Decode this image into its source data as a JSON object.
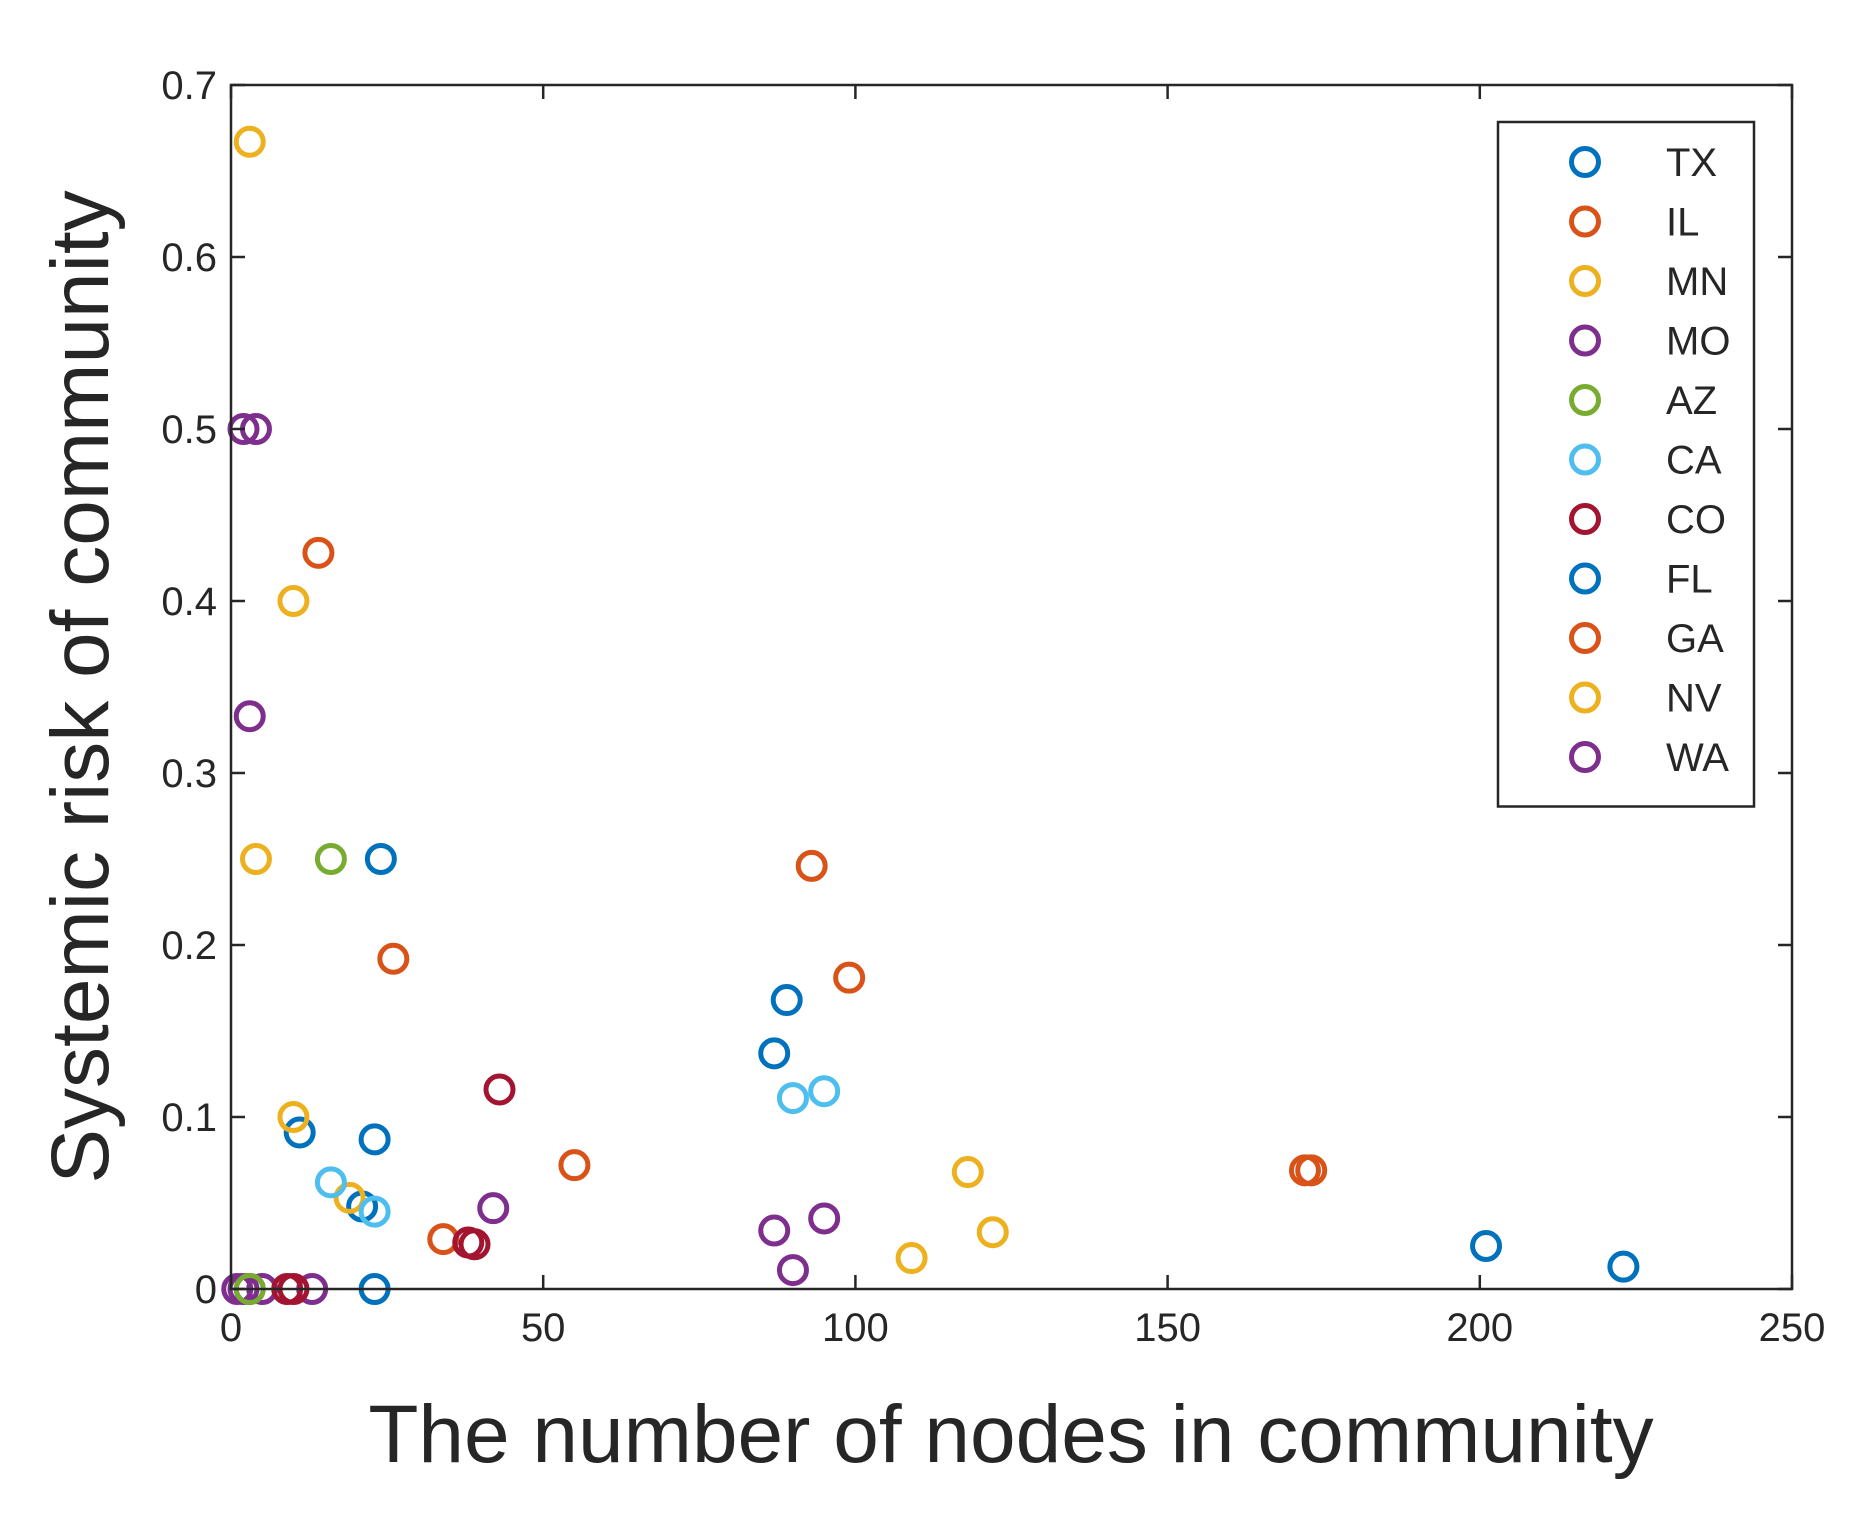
{
  "chart_data": {
    "type": "scatter",
    "title": "",
    "xlabel": "The number of nodes in community",
    "ylabel": "Systemic risk of community",
    "xlim": [
      0,
      250
    ],
    "ylim": [
      0,
      0.7
    ],
    "xticks": [
      0,
      50,
      100,
      150,
      200,
      250
    ],
    "yticks": [
      0,
      0.1,
      0.2,
      0.3,
      0.4,
      0.5,
      0.6,
      0.7
    ],
    "xtick_labels": [
      "0",
      "50",
      "100",
      "150",
      "200",
      "250"
    ],
    "ytick_labels": [
      "0",
      "0.1",
      "0.2",
      "0.3",
      "0.4",
      "0.5",
      "0.6",
      "0.7"
    ],
    "grid": false,
    "legend_position": "top-right",
    "marker": "open-circle",
    "series": [
      {
        "name": "TX",
        "color": "#0072BD",
        "points": [
          [
            11,
            0.091
          ],
          [
            24,
            0.25
          ],
          [
            23,
            0.087
          ],
          [
            21,
            0.048
          ],
          [
            23,
            0
          ]
        ]
      },
      {
        "name": "IL",
        "color": "#D95319",
        "points": [
          [
            14,
            0.428
          ],
          [
            26,
            0.192
          ],
          [
            34,
            0.029
          ],
          [
            172,
            0.069
          ],
          [
            173,
            0.069
          ]
        ]
      },
      {
        "name": "MN",
        "color": "#EDB120",
        "points": [
          [
            3,
            0.667
          ],
          [
            10,
            0.4
          ],
          [
            4,
            0.25
          ],
          [
            10,
            0.1
          ],
          [
            19,
            0.053
          ]
        ]
      },
      {
        "name": "MO",
        "color": "#7E2F8E",
        "points": [
          [
            2,
            0.5
          ],
          [
            4,
            0.5
          ],
          [
            3,
            0.333
          ],
          [
            1,
            0
          ],
          [
            2,
            0
          ],
          [
            3,
            0
          ],
          [
            5,
            0
          ],
          [
            13,
            0
          ]
        ]
      },
      {
        "name": "AZ",
        "color": "#77AC30",
        "points": [
          [
            16,
            0.25
          ],
          [
            3,
            0
          ]
        ]
      },
      {
        "name": "CA",
        "color": "#4DBEEE",
        "points": [
          [
            16,
            0.062
          ],
          [
            23,
            0.045
          ],
          [
            90,
            0.111
          ],
          [
            95,
            0.115
          ]
        ]
      },
      {
        "name": "CO",
        "color": "#A2142F",
        "points": [
          [
            43,
            0.116
          ],
          [
            38,
            0.027
          ],
          [
            39,
            0.026
          ],
          [
            9,
            0
          ],
          [
            10,
            0
          ]
        ]
      },
      {
        "name": "FL",
        "color": "#0072BD",
        "points": [
          [
            89,
            0.168
          ],
          [
            87,
            0.137
          ],
          [
            201,
            0.025
          ],
          [
            223,
            0.013
          ]
        ]
      },
      {
        "name": "GA",
        "color": "#D95319",
        "points": [
          [
            93,
            0.246
          ],
          [
            99,
            0.181
          ],
          [
            55,
            0.072
          ]
        ]
      },
      {
        "name": "NV",
        "color": "#EDB120",
        "points": [
          [
            118,
            0.068
          ],
          [
            122,
            0.033
          ],
          [
            109,
            0.018
          ]
        ]
      },
      {
        "name": "WA",
        "color": "#7E2F8E",
        "points": [
          [
            42,
            0.047
          ],
          [
            87,
            0.034
          ],
          [
            95,
            0.041
          ],
          [
            90,
            0.011
          ]
        ]
      }
    ]
  }
}
